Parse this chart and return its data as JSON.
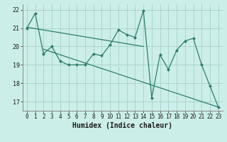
{
  "title": "",
  "xlabel": "Humidex (Indice chaleur)",
  "bg_color": "#cceee8",
  "grid_color": "#aad4ce",
  "line_color": "#2e7d6e",
  "xlim": [
    -0.5,
    23.5
  ],
  "ylim": [
    16.5,
    22.3
  ],
  "yticks": [
    17,
    18,
    19,
    20,
    21,
    22
  ],
  "xticks": [
    0,
    1,
    2,
    3,
    4,
    5,
    6,
    7,
    8,
    9,
    10,
    11,
    12,
    13,
    14,
    15,
    16,
    17,
    18,
    19,
    20,
    21,
    22,
    23
  ],
  "main_x": [
    0,
    1,
    2,
    3,
    4,
    5,
    6,
    7,
    8,
    9,
    10,
    11,
    12,
    13,
    14,
    15,
    16,
    17,
    18,
    19,
    20,
    21,
    22,
    23
  ],
  "main_y": [
    21.0,
    21.8,
    19.6,
    20.0,
    19.2,
    19.0,
    19.0,
    19.0,
    19.6,
    19.5,
    20.1,
    20.9,
    20.65,
    20.5,
    21.95,
    17.2,
    19.55,
    18.75,
    19.8,
    20.3,
    20.45,
    19.0,
    17.85,
    16.7
  ],
  "trend1_x": [
    0,
    14
  ],
  "trend1_y": [
    21.05,
    20.0
  ],
  "trend2_x": [
    2,
    23
  ],
  "trend2_y": [
    19.85,
    16.7
  ],
  "xlabel_fontsize": 7,
  "tick_fontsize": 5.5
}
